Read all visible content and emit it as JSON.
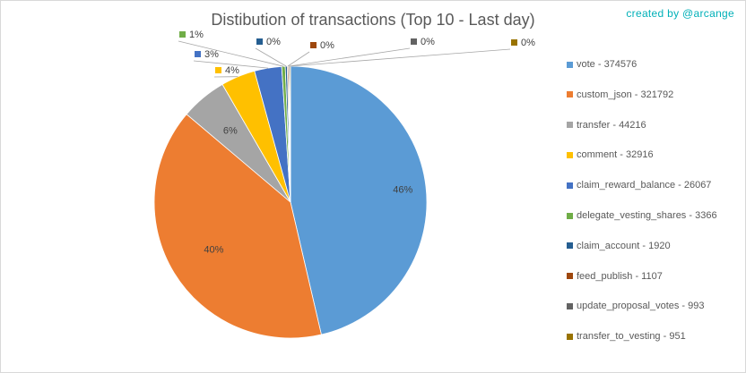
{
  "title": "Distibution of transactions (Top 10 - Last day)",
  "credit": "created by @arcange",
  "chart_data": {
    "type": "pie",
    "title": "Distibution of transactions (Top 10 - Last day)",
    "legend_position": "right",
    "categories": [
      "vote",
      "custom_json",
      "transfer",
      "comment",
      "claim_reward_balance",
      "delegate_vesting_shares",
      "claim_account",
      "feed_publish",
      "update_proposal_votes",
      "transfer_to_vesting"
    ],
    "values": [
      374576,
      321792,
      44216,
      32916,
      26067,
      3366,
      1920,
      1107,
      993,
      951
    ],
    "percent_labels": [
      "46%",
      "40%",
      "6%",
      "4%",
      "3%",
      "1%",
      "0%",
      "0%",
      "0%",
      "0%"
    ],
    "legend_labels": [
      "vote - 374576",
      "custom_json - 321792",
      "transfer - 44216",
      "comment - 32916",
      "claim_reward_balance - 26067",
      "delegate_vesting_shares - 3366",
      "claim_account - 1920",
      "feed_publish - 1107",
      "update_proposal_votes - 993",
      "transfer_to_vesting - 951"
    ],
    "colors": [
      "#5b9bd5",
      "#ed7d31",
      "#a5a5a5",
      "#ffc000",
      "#4472c4",
      "#70ad47",
      "#255e91",
      "#9e480e",
      "#636363",
      "#997300"
    ]
  }
}
